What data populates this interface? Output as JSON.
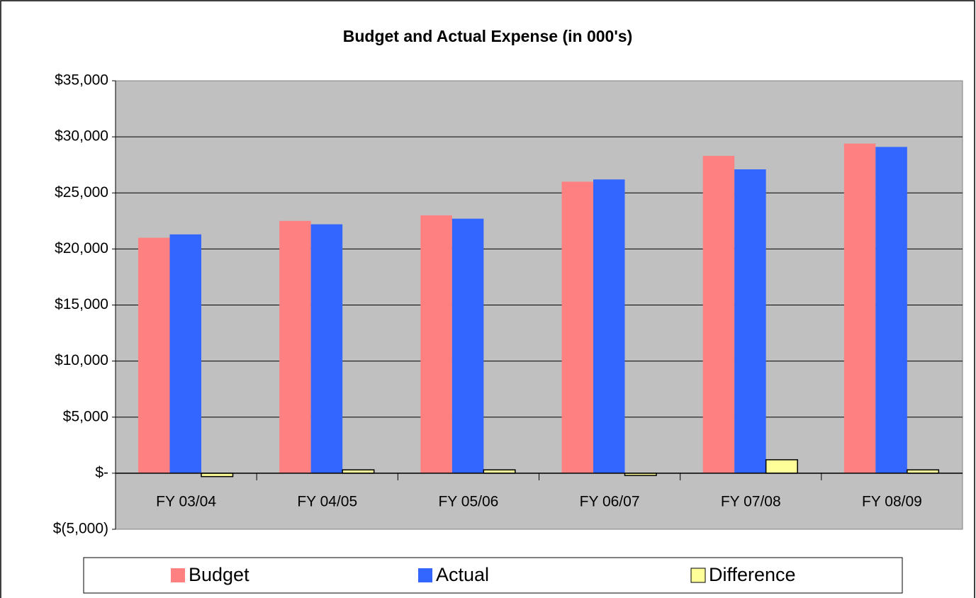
{
  "chart_data": {
    "type": "bar",
    "title": "Budget and Actual Expense (in 000's)",
    "categories": [
      "FY 03/04",
      "FY 04/05",
      "FY 05/06",
      "FY 06/07",
      "FY 07/08",
      "FY 08/09"
    ],
    "series": [
      {
        "name": "Budget",
        "color": "#ff8080",
        "values": [
          21000,
          22500,
          23000,
          26000,
          28300,
          29400
        ]
      },
      {
        "name": "Actual",
        "color": "#3366ff",
        "values": [
          21300,
          22200,
          22700,
          26200,
          27100,
          29100
        ]
      },
      {
        "name": "Difference",
        "color": "#ffff99",
        "values": [
          -300,
          300,
          300,
          -200,
          1200,
          300
        ]
      }
    ],
    "ylim": [
      -5000,
      35000
    ],
    "yticks": [
      {
        "value": -5000,
        "label": "$(5,000)"
      },
      {
        "value": 0,
        "label": "$-"
      },
      {
        "value": 5000,
        "label": "$5,000"
      },
      {
        "value": 10000,
        "label": "$10,000"
      },
      {
        "value": 15000,
        "label": "$15,000"
      },
      {
        "value": 20000,
        "label": "$20,000"
      },
      {
        "value": 25000,
        "label": "$25,000"
      },
      {
        "value": 30000,
        "label": "$30,000"
      },
      {
        "value": 35000,
        "label": "$35,000"
      }
    ],
    "grid": true,
    "legend": "bottom"
  }
}
